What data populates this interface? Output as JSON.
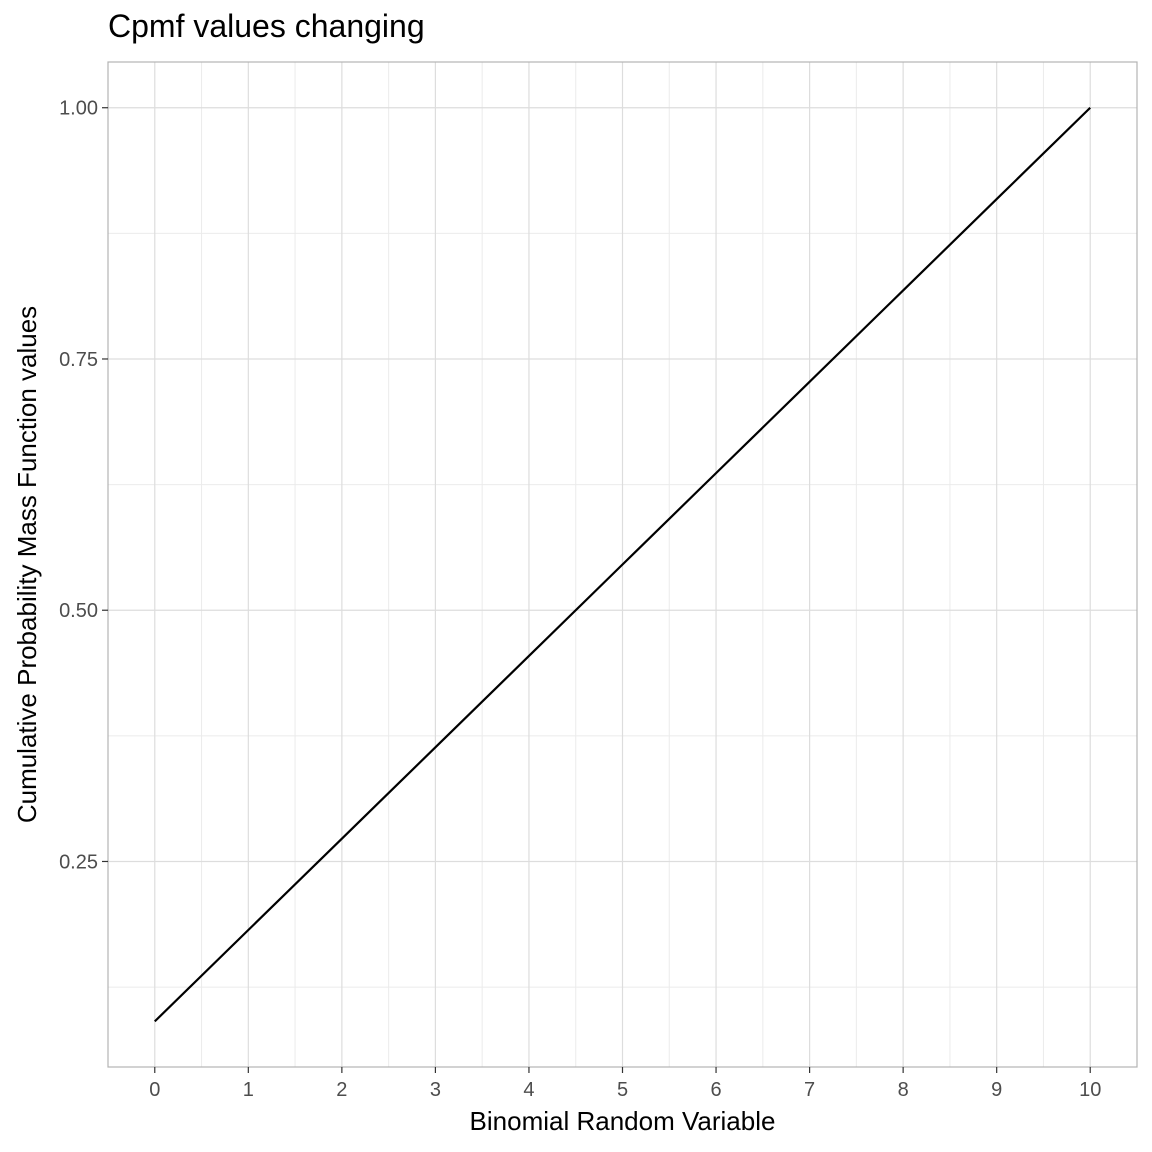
{
  "chart_data": {
    "type": "line",
    "title": "Cpmf values changing",
    "xlabel": "Binomial Random Variable",
    "ylabel": "Cumulative Probability Mass Function values",
    "x": [
      0,
      1,
      2,
      3,
      4,
      5,
      6,
      7,
      8,
      9,
      10
    ],
    "series": [
      {
        "values": [
          0.0909,
          0.1818,
          0.2727,
          0.3636,
          0.4545,
          0.5455,
          0.6364,
          0.7273,
          0.8182,
          0.9091,
          1.0
        ]
      }
    ],
    "xticks": [
      0,
      1,
      2,
      3,
      4,
      5,
      6,
      7,
      8,
      9,
      10
    ],
    "xtick_labels": [
      "0",
      "1",
      "2",
      "3",
      "4",
      "5",
      "6",
      "7",
      "8",
      "9",
      "10"
    ],
    "yticks": [
      0.25,
      0.5,
      0.75,
      1.0
    ],
    "ytick_labels": [
      "0.25",
      "0.50",
      "0.75",
      "1.00"
    ],
    "xlim": [
      -0.5,
      10.5
    ],
    "ylim": [
      0.0455,
      1.0455
    ],
    "grid": true,
    "legend": "none",
    "colors": {
      "line": "#000000",
      "grid": "#dddddd",
      "grid_minor": "#ebebeb",
      "panel_border": "#b3b3b3",
      "tick_text": "#4d4d4d"
    }
  }
}
